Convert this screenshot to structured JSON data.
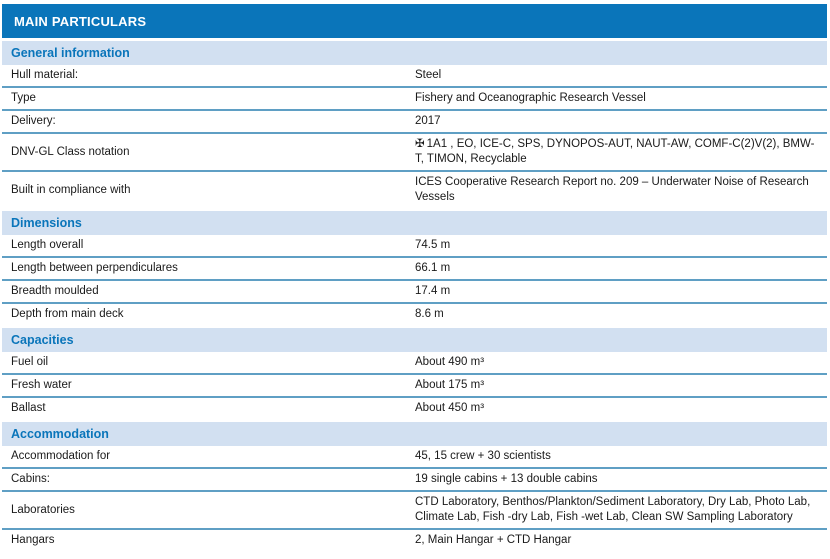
{
  "colors": {
    "header_background": "#0a75ba",
    "header_text": "#ffffff",
    "section_background": "#d2e0f1",
    "section_text": "#0a75ba",
    "row_divider": "#5f9fc4",
    "body_text": "#1a1a1a",
    "page_background": "#ffffff"
  },
  "icons": {
    "maltese_cross": "✠"
  },
  "table": {
    "title": "MAIN PARTICULARS",
    "sections": [
      {
        "heading": "General information",
        "rows": [
          {
            "label": "Hull material:",
            "value": "Steel"
          },
          {
            "label": "Type",
            "value": "Fishery and Oceanographic Research Vessel"
          },
          {
            "label": "Delivery:",
            "value": "2017"
          },
          {
            "label": "DNV-GL Class notation",
            "icon": "✠",
            "value": "1A1 , EO, ICE-C, SPS, DYNOPOS-AUT, NAUT-AW, COMF-C(2)V(2), BMW-T, TIMON, Recyclable"
          },
          {
            "label": "Built in compliance with",
            "value": "ICES Cooperative Research Report no. 209 – Underwater Noise of Research Vessels"
          }
        ]
      },
      {
        "heading": "Dimensions",
        "rows": [
          {
            "label": "Length overall",
            "value": "74.5 m"
          },
          {
            "label": "Length between perpendiculares",
            "value": "66.1 m"
          },
          {
            "label": "Breadth moulded",
            "value": "17.4 m"
          },
          {
            "label": "Depth from main deck",
            "value": "8.6 m"
          }
        ]
      },
      {
        "heading": "Capacities",
        "rows": [
          {
            "label": "Fuel oil",
            "value": "About 490 m³"
          },
          {
            "label": "Fresh water",
            "value": "About 175 m³"
          },
          {
            "label": "Ballast",
            "value": "About 450 m³"
          }
        ]
      },
      {
        "heading": "Accommodation",
        "rows": [
          {
            "label": "Accommodation for",
            "value": "45, 15 crew + 30 scientists"
          },
          {
            "label": "Cabins:",
            "value": "19 single cabins + 13 double cabins"
          },
          {
            "label": "Laboratories",
            "value": "CTD Laboratory, Benthos/Plankton/Sediment Laboratory, Dry Lab, Photo Lab, Climate Lab, Fish -dry Lab, Fish -wet Lab, Clean SW Sampling Laboratory"
          },
          {
            "label": "Hangars",
            "value": "2, Main Hangar + CTD Hangar"
          }
        ]
      }
    ]
  }
}
